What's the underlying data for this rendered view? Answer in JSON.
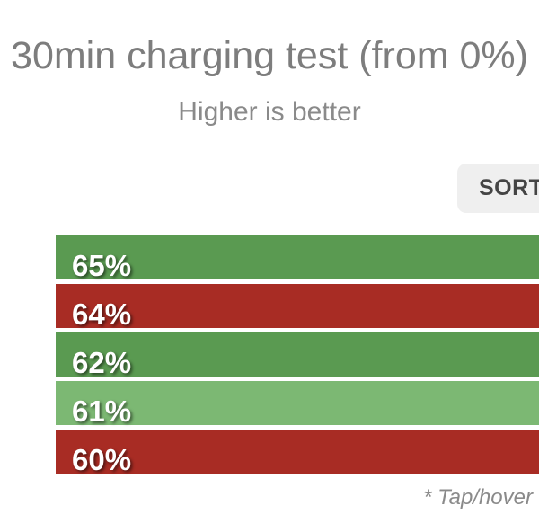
{
  "header": {
    "title": "30min charging test (from 0%)",
    "subtitle": "Higher is better"
  },
  "toolbar": {
    "sort_label": "SORT"
  },
  "footer": {
    "note": "* Tap/hover"
  },
  "colors": {
    "bar_green": "#5A9A51",
    "bar_light_green": "#7CB873",
    "bar_red": "#A82C24",
    "title_gray": "#7D7D7D",
    "subtitle_gray": "#8A8A8A",
    "sort_button_bg": "#EFEFEF",
    "sort_button_text": "#444444",
    "bar_label_text": "#FFFFFF"
  },
  "chart_data": {
    "type": "bar",
    "orientation": "horizontal",
    "title": "30min charging test (from 0%)",
    "subtitle": "Higher is better",
    "value_unit": "%",
    "legend_position": "none",
    "grid": false,
    "bars": [
      {
        "label": "65%",
        "value": 65,
        "color": "#5A9A51"
      },
      {
        "label": "64%",
        "value": 64,
        "color": "#A82C24"
      },
      {
        "label": "62%",
        "value": 62,
        "color": "#5A9A51"
      },
      {
        "label": "61%",
        "value": 61,
        "color": "#7CB873"
      },
      {
        "label": "60%",
        "value": 60,
        "color": "#A82C24"
      }
    ]
  }
}
